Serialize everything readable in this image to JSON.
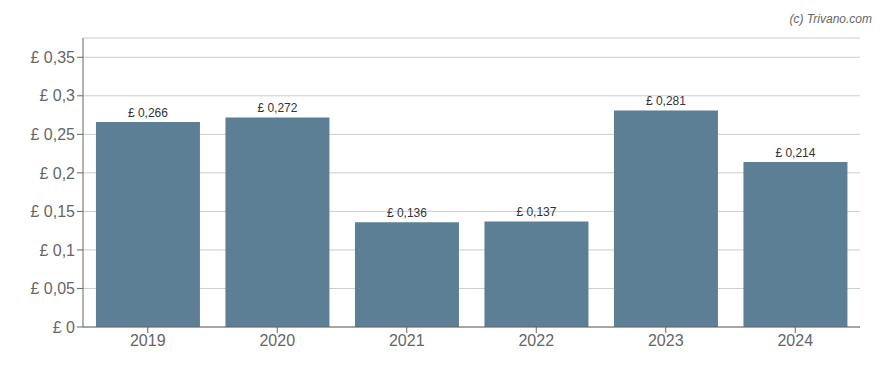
{
  "chart_data": {
    "type": "bar",
    "categories": [
      "2019",
      "2020",
      "2021",
      "2022",
      "2023",
      "2024"
    ],
    "values": [
      0.266,
      0.272,
      0.136,
      0.137,
      0.281,
      0.214
    ],
    "value_labels": [
      "£ 0,266",
      "£ 0,272",
      "£ 0,136",
      "£ 0,137",
      "£ 0,281",
      "£ 0,214"
    ],
    "data_labels": true,
    "color": "#5d7f95",
    "ylim": [
      0,
      0.375
    ],
    "yticks": [
      {
        "value": 0,
        "label": "£ 0"
      },
      {
        "value": 0.05,
        "label": "£ 0,05"
      },
      {
        "value": 0.1,
        "label": "£ 0,1"
      },
      {
        "value": 0.15,
        "label": "£ 0,15"
      },
      {
        "value": 0.2,
        "label": "£ 0,2"
      },
      {
        "value": 0.25,
        "label": "£ 0,25"
      },
      {
        "value": 0.3,
        "label": "£ 0,3"
      },
      {
        "value": 0.35,
        "label": "£ 0,35"
      }
    ],
    "grid": true,
    "annotations": [
      "(c) Trivano.com"
    ]
  }
}
